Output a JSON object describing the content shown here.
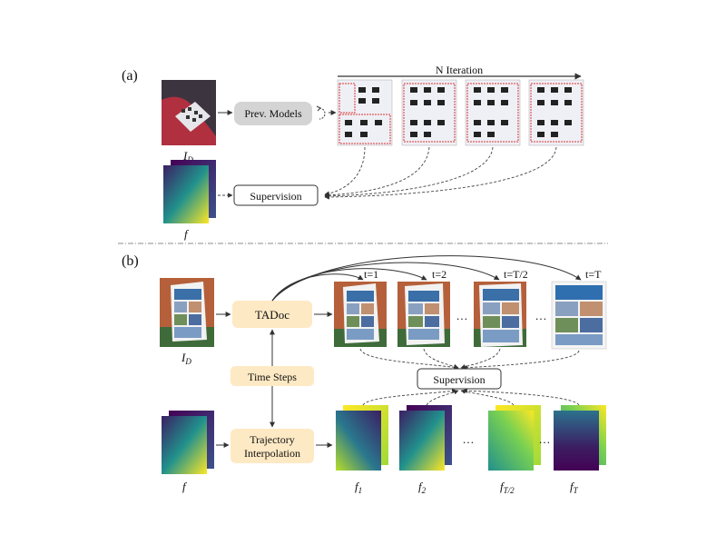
{
  "panel_a": {
    "tag": "(a)",
    "prev_models_label": "Prev. Models",
    "iteration_label": "N Iteration",
    "supervision_label": "Supervision",
    "input_label": "I",
    "input_sub": "D",
    "flow_label": "f"
  },
  "panel_b": {
    "tag": "(b)",
    "tadoc_label": "TADoc",
    "time_steps_label": "Time Steps",
    "traj_line1": "Trajectory",
    "traj_line2": "Interpolation",
    "supervision_label": "Supervision",
    "input_label": "I",
    "input_sub": "D",
    "flow_label": "f",
    "t_labels": [
      "t=1",
      "t=2",
      "t=T/2",
      "t=T"
    ],
    "ellipsis": "…",
    "flow_sub_labels": [
      {
        "base": "f",
        "sub": "1"
      },
      {
        "base": "f",
        "sub": "2"
      },
      {
        "base": "f",
        "sub": "T/2"
      },
      {
        "base": "f",
        "sub": "T"
      }
    ]
  },
  "colors": {
    "prev_box": "#d4d4d4",
    "tadoc_box": "#fde9c4",
    "viridis_purple": "#3b1f63",
    "viridis_teal": "#21918c",
    "viridis_yellow": "#fde725"
  }
}
